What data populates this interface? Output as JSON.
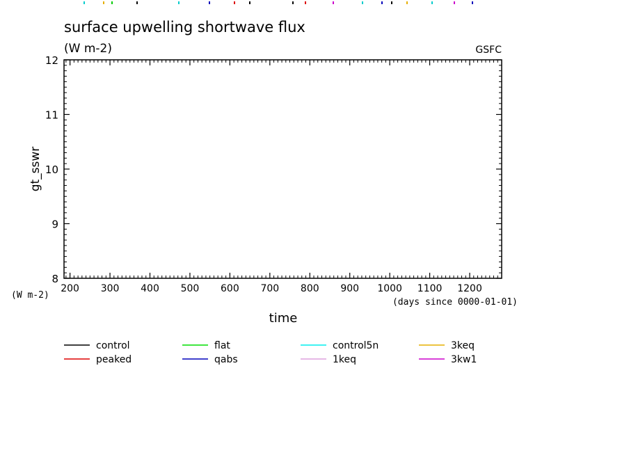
{
  "chart_data": {
    "type": "line",
    "title": "surface upwelling shortwave flux",
    "subtitle": "(W m-2)",
    "source": "GSFC",
    "xlabel": "time",
    "x_units": "(days since 0000-01-01)",
    "ylabel": "gt_sswr",
    "y_units": "(W m-2)",
    "xlim": [
      185,
      1280
    ],
    "ylim": [
      8,
      12
    ],
    "x_ticks": [
      "200",
      "300",
      "400",
      "500",
      "600",
      "700",
      "800",
      "900",
      "1000",
      "1100",
      "1200"
    ],
    "y_ticks": [
      "8",
      "9",
      "10",
      "11",
      "12"
    ],
    "legend_placement": "bottom",
    "series": [
      {
        "name": "control",
        "color": "#000000",
        "values": []
      },
      {
        "name": "flat",
        "color": "#00dd00",
        "values": []
      },
      {
        "name": "control5n",
        "color": "#00eeee",
        "values": []
      },
      {
        "name": "3keq",
        "color": "#e6b000",
        "values": []
      },
      {
        "name": "peaked",
        "color": "#dd0000",
        "values": []
      },
      {
        "name": "qabs",
        "color": "#0000bb",
        "values": []
      },
      {
        "name": "1keq",
        "color": "#dda0dd",
        "values": []
      },
      {
        "name": "3kw1",
        "color": "#cc00cc",
        "values": []
      }
    ]
  }
}
